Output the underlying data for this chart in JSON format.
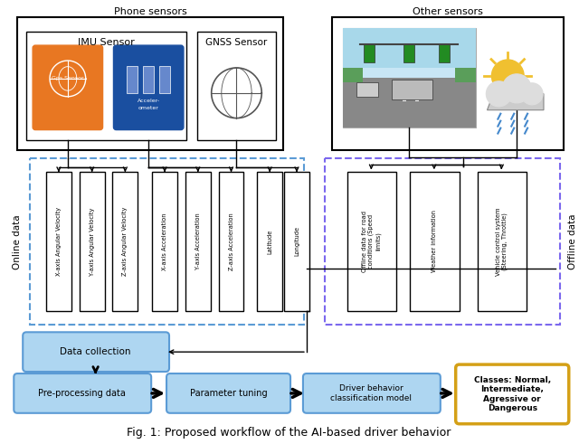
{
  "title": "Fig. 1: Proposed workflow of the AI-based driver behavior",
  "phone_sensors_label": "Phone sensors",
  "other_sensors_label": "Other sensors",
  "imu_label": "IMU Sensor",
  "gnss_label": "GNSS Sensor",
  "online_data_label": "Online data",
  "offline_data_label": "Offline data",
  "online_cols": [
    "X-axis Angular Velocity",
    "Y-axis Angular Velocity",
    "Z-axis Angular Velocity",
    "X-axis Acceleration",
    "Y-axis Acceleration",
    "Z-axis Acceleration",
    "Latitude",
    "Longitude"
  ],
  "offline_cols": [
    "Offline data for road\nconditions (Speed\nlimits)",
    "Weather information",
    "Vehicle control system\n(Steering, Throttle)"
  ],
  "gps_color": "#E87722",
  "acc_color": "#1A4FA0",
  "blue_box_color": "#AED6F1",
  "blue_edge_color": "#5B9BD5",
  "online_dash_color": "#5B9BD5",
  "offline_dash_color": "#7B68EE",
  "classes_edge_color": "#D4A017",
  "bg_color": "#FFFFFF"
}
